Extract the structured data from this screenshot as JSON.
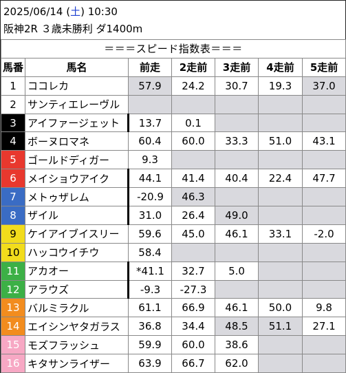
{
  "header": {
    "date_prefix": "2025/06/14 (",
    "weekday": "土",
    "date_suffix": ") 10:30",
    "race": "阪神2R ３歳未勝利 ダ1400m"
  },
  "table": {
    "title": "＝＝＝スピード指数表＝＝＝",
    "columns": [
      "馬番",
      "馬名",
      "前走",
      "2走前",
      "3走前",
      "4走前",
      "5走前"
    ],
    "frame_colors": {
      "1": "#ffffff",
      "2": "#000000",
      "3": "#e8382e",
      "4": "#3a6cc4",
      "5": "#f2dc1c",
      "6": "#3cb046",
      "7": "#f28c1e",
      "8": "#f7a8c4"
    },
    "rows": [
      {
        "no": "1",
        "name": "ココレカ",
        "frame": 1,
        "thick": false,
        "values": [
          "57.9",
          "24.2",
          "30.7",
          "19.3",
          "37.0"
        ],
        "shade": [
          true,
          false,
          false,
          false,
          true
        ]
      },
      {
        "no": "2",
        "name": "サンティエレーヴル",
        "frame": 1,
        "thick": false,
        "values": [
          "",
          "",
          "",
          "",
          ""
        ],
        "shade": [
          true,
          true,
          true,
          true,
          true
        ]
      },
      {
        "no": "3",
        "name": "アイファージェット",
        "frame": 2,
        "thick": true,
        "values": [
          "13.7",
          "0.1",
          "",
          "",
          ""
        ],
        "shade": [
          false,
          false,
          true,
          true,
          true
        ]
      },
      {
        "no": "4",
        "name": "ボーヌロマネ",
        "frame": 2,
        "thick": false,
        "values": [
          "60.4",
          "60.0",
          "33.3",
          "51.0",
          "43.1"
        ],
        "shade": [
          false,
          false,
          false,
          false,
          false
        ]
      },
      {
        "no": "5",
        "name": "ゴールドディガー",
        "frame": 3,
        "thick": false,
        "values": [
          "9.3",
          "",
          "",
          "",
          ""
        ],
        "shade": [
          false,
          true,
          true,
          true,
          true
        ]
      },
      {
        "no": "6",
        "name": "メイショウアイク",
        "frame": 3,
        "thick": true,
        "values": [
          "44.1",
          "41.4",
          "40.4",
          "22.4",
          "47.7"
        ],
        "shade": [
          false,
          false,
          false,
          false,
          false
        ]
      },
      {
        "no": "7",
        "name": "メトゥザレム",
        "frame": 4,
        "thick": true,
        "values": [
          "-20.9",
          "46.3",
          "",
          "",
          ""
        ],
        "shade": [
          false,
          true,
          true,
          true,
          true
        ]
      },
      {
        "no": "8",
        "name": "ザイル",
        "frame": 4,
        "thick": true,
        "values": [
          "31.0",
          "26.4",
          "49.0",
          "",
          ""
        ],
        "shade": [
          false,
          false,
          true,
          true,
          true
        ]
      },
      {
        "no": "9",
        "name": "ケイアイブイスリー",
        "frame": 5,
        "thick": false,
        "values": [
          "59.6",
          "45.0",
          "46.1",
          "33.1",
          "-2.0"
        ],
        "shade": [
          false,
          false,
          false,
          false,
          false
        ]
      },
      {
        "no": "10",
        "name": "ハッコウイチウ",
        "frame": 5,
        "thick": false,
        "values": [
          "58.4",
          "",
          "",
          "",
          ""
        ],
        "shade": [
          false,
          true,
          true,
          true,
          true
        ]
      },
      {
        "no": "11",
        "name": "アカオー",
        "frame": 6,
        "thick": true,
        "values": [
          "*41.1",
          "32.7",
          "5.0",
          "",
          ""
        ],
        "shade": [
          false,
          false,
          false,
          true,
          true
        ]
      },
      {
        "no": "12",
        "name": "アラウズ",
        "frame": 6,
        "thick": true,
        "values": [
          "-9.3",
          "-27.3",
          "",
          "",
          ""
        ],
        "shade": [
          false,
          false,
          true,
          true,
          true
        ]
      },
      {
        "no": "13",
        "name": "バルミラクル",
        "frame": 7,
        "thick": false,
        "values": [
          "61.1",
          "66.9",
          "46.1",
          "50.0",
          "9.8"
        ],
        "shade": [
          false,
          false,
          false,
          false,
          false
        ]
      },
      {
        "no": "14",
        "name": "エイシンヤタガラス",
        "frame": 7,
        "thick": false,
        "values": [
          "36.8",
          "34.4",
          "48.5",
          "51.1",
          "27.1"
        ],
        "shade": [
          false,
          false,
          true,
          true,
          false
        ]
      },
      {
        "no": "15",
        "name": "モズフラッシュ",
        "frame": 8,
        "thick": false,
        "values": [
          "59.9",
          "60.0",
          "38.6",
          "",
          ""
        ],
        "shade": [
          false,
          false,
          false,
          true,
          true
        ]
      },
      {
        "no": "16",
        "name": "キタサンライザー",
        "frame": 8,
        "thick": false,
        "values": [
          "63.9",
          "66.7",
          "62.0",
          "",
          ""
        ],
        "shade": [
          false,
          false,
          false,
          true,
          true
        ]
      }
    ]
  }
}
